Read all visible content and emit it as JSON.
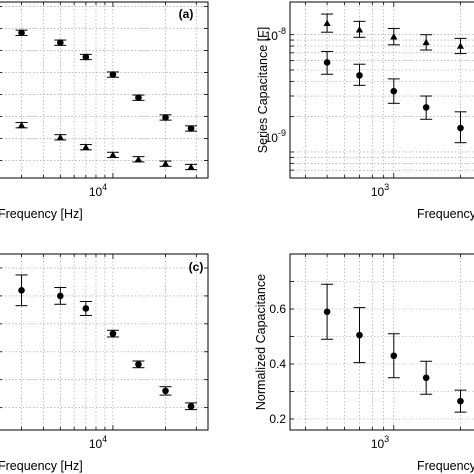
{
  "chart_data": [
    {
      "panel": "(a)",
      "type": "scatter",
      "xlabel": "Frequency [Hz]",
      "ylabel": "",
      "x_scale": "log",
      "x_tick_labels": [
        {
          "base": "10",
          "exp": "4"
        }
      ],
      "grid": true,
      "series": [
        {
          "marker": "circle",
          "x": [
            3000,
            5000,
            7000,
            10000,
            14000,
            20000,
            28000
          ],
          "y": [
            0.78,
            0.735,
            0.67,
            0.59,
            0.485,
            0.395,
            0.345
          ],
          "err": [
            0.012,
            0.012,
            0.012,
            0.012,
            0.012,
            0.012,
            0.012
          ]
        },
        {
          "marker": "triangle",
          "x": [
            3000,
            5000,
            7000,
            10000,
            14000,
            20000,
            28000
          ],
          "y": [
            0.36,
            0.305,
            0.26,
            0.225,
            0.205,
            0.185,
            0.17
          ],
          "err": [
            0.012,
            0.012,
            0.012,
            0.012,
            0.012,
            0.012,
            0.012
          ]
        }
      ]
    },
    {
      "panel": "",
      "type": "scatter",
      "xlabel": "Frequency [Hz]",
      "ylabel": "Series Capacitance [F]",
      "x_scale": "log",
      "y_scale": "log",
      "x_tick_labels": [
        {
          "base": "10",
          "exp": "3"
        }
      ],
      "y_tick_labels": [
        {
          "value": 1e-08,
          "base": "10",
          "exp": "-8"
        },
        {
          "value": 1e-09,
          "base": "10",
          "exp": "-9"
        }
      ],
      "grid": true,
      "series": [
        {
          "marker": "triangle",
          "x": [
            500,
            700,
            1000,
            1400,
            2000
          ],
          "y": [
            1.25e-08,
            1.1e-08,
            9.6e-09,
            8.6e-09,
            8e-09
          ],
          "err_lo": [
            1.05e-08,
            9.5e-09,
            8.2e-09,
            7.4e-09,
            6.9e-09
          ],
          "err_hi": [
            1.5e-08,
            1.3e-08,
            1.13e-08,
            1e-08,
            9.3e-09
          ]
        },
        {
          "marker": "circle",
          "x": [
            500,
            700,
            1000,
            1400,
            2000
          ],
          "y": [
            5.8e-09,
            4.5e-09,
            3.3e-09,
            2.4e-09,
            1.6e-09
          ],
          "err_lo": [
            4.6e-09,
            3.7e-09,
            2.6e-09,
            1.9e-09,
            1.2e-09
          ],
          "err_hi": [
            7.2e-09,
            5.6e-09,
            4.2e-09,
            3e-09,
            2.2e-09
          ]
        }
      ]
    },
    {
      "panel": "(c)",
      "type": "scatter",
      "xlabel": "Frequency [Hz]",
      "ylabel": "",
      "x_scale": "log",
      "x_tick_labels": [
        {
          "base": "10",
          "exp": "4"
        }
      ],
      "grid": true,
      "series": [
        {
          "marker": "circle",
          "x": [
            3000,
            5000,
            7000,
            10000,
            14000,
            20000,
            28000
          ],
          "y": [
            0.72,
            0.7,
            0.655,
            0.565,
            0.455,
            0.36,
            0.305
          ],
          "err": [
            0.055,
            0.03,
            0.025,
            0.012,
            0.012,
            0.015,
            0.012
          ]
        }
      ]
    },
    {
      "panel": "",
      "type": "scatter",
      "xlabel": "Frequency [Hz]",
      "ylabel": "Normalized Capacitance",
      "x_scale": "log",
      "x_tick_labels": [
        {
          "base": "10",
          "exp": "3"
        }
      ],
      "y_ticks": [
        0.2,
        0.4,
        0.6
      ],
      "ylim": [
        0.16,
        0.8
      ],
      "grid": true,
      "series": [
        {
          "marker": "circle",
          "x": [
            500,
            700,
            1000,
            1400,
            2000
          ],
          "y": [
            0.59,
            0.505,
            0.43,
            0.35,
            0.265
          ],
          "err": [
            0.1,
            0.1,
            0.08,
            0.06,
            0.04
          ]
        }
      ]
    }
  ]
}
